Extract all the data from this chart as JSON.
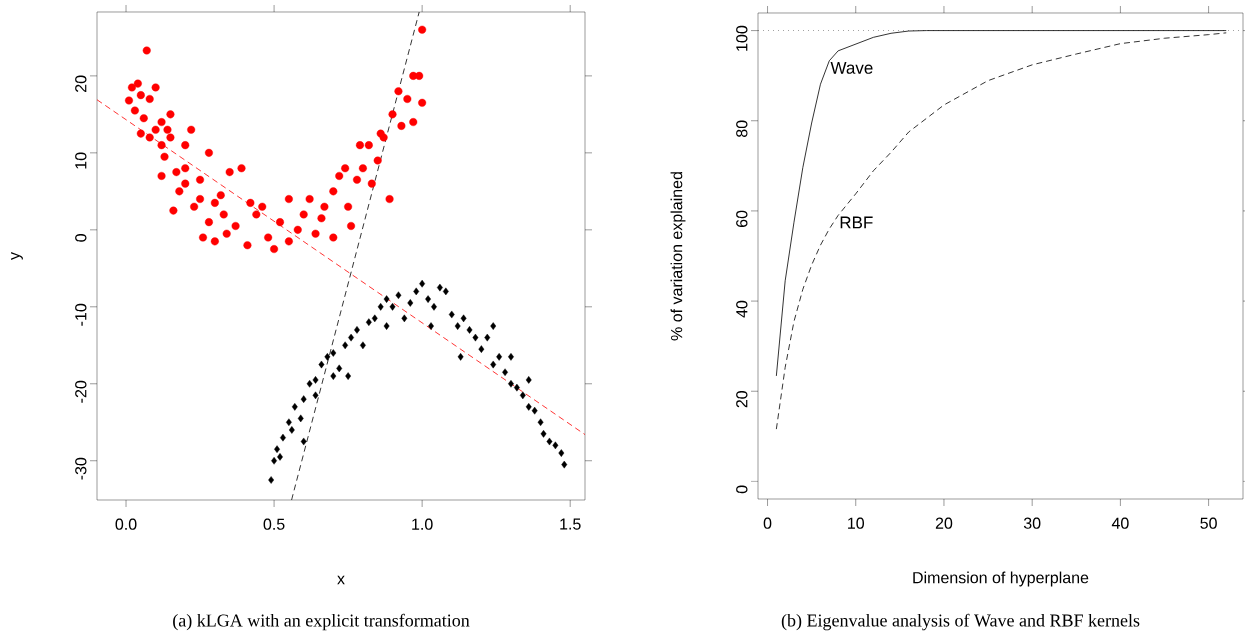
{
  "chart_data": [
    {
      "type": "scatter",
      "xlabel": "x",
      "ylabel": "y",
      "xlim": [
        -0.098,
        1.55
      ],
      "ylim": [
        -35.1,
        28.3
      ],
      "xticks": [
        {
          "value": 0,
          "label": "0.0"
        },
        0.5,
        {
          "value": 1,
          "label": "1.0"
        },
        1.5
      ],
      "yticks": [
        -30,
        -20,
        -10,
        0,
        10,
        20
      ],
      "series": [
        {
          "color": "#ff0000",
          "marker": "circle",
          "x": [
            0.07,
            0.02,
            0.04,
            0.01,
            0.05,
            0.08,
            0.1,
            0.03,
            0.06,
            0.1,
            0.12,
            0.15,
            0.14,
            0.08,
            0.12,
            0.15,
            0.13,
            0.2,
            0.17,
            0.12,
            0.2,
            0.25,
            0.28,
            0.22,
            0.18,
            0.23,
            0.16,
            0.25,
            0.3,
            0.32,
            0.28,
            0.33,
            0.35,
            0.39,
            0.26,
            0.3,
            0.34,
            0.37,
            0.41,
            0.44,
            0.46,
            0.48,
            0.5,
            0.52,
            0.55,
            0.58,
            0.6,
            0.62,
            0.64,
            0.66,
            0.7,
            0.72,
            0.75,
            0.78,
            0.8,
            0.83,
            0.85,
            0.87,
            0.82,
            0.9,
            0.92,
            0.95,
            0.97,
            0.99,
            1.0,
            1.0,
            0.93,
            0.89,
            0.76,
            0.7,
            0.55,
            0.67,
            0.42,
            0.2,
            0.05,
            0.97,
            0.86,
            0.79,
            0.74
          ],
          "values": [
            23.3,
            18.5,
            19,
            16.8,
            17.5,
            17,
            18.5,
            15.5,
            14.5,
            13,
            14,
            15,
            13,
            12,
            11,
            12,
            9.5,
            8,
            7.5,
            7,
            6,
            6.5,
            10,
            13,
            5,
            3,
            2.5,
            4,
            3.5,
            4.5,
            1,
            2,
            7.5,
            8,
            -1,
            -1.5,
            -0.5,
            0.5,
            -2,
            2,
            3,
            -1,
            -2.5,
            1,
            -1.5,
            0,
            2,
            4,
            -0.5,
            1.5,
            5,
            7,
            3,
            6.5,
            8,
            6,
            9,
            12,
            11,
            15,
            18,
            17,
            20,
            20,
            26,
            16.5,
            13.5,
            4,
            0.5,
            -1,
            4,
            3,
            3.5,
            11,
            12.5,
            14,
            12.5,
            11,
            8
          ]
        },
        {
          "color": "#000000",
          "marker": "diamond",
          "x": [
            0.49,
            0.5,
            0.51,
            0.53,
            0.52,
            0.55,
            0.57,
            0.56,
            0.6,
            0.59,
            0.62,
            0.64,
            0.66,
            0.68,
            0.7,
            0.7,
            0.72,
            0.74,
            0.76,
            0.78,
            0.75,
            0.8,
            0.82,
            0.84,
            0.86,
            0.88,
            0.9,
            0.92,
            0.94,
            0.96,
            0.98,
            1.0,
            1.02,
            1.04,
            1.06,
            1.08,
            1.1,
            1.12,
            1.14,
            1.16,
            1.18,
            1.2,
            1.22,
            1.24,
            1.26,
            1.28,
            1.3,
            1.32,
            1.34,
            1.36,
            1.38,
            1.4,
            1.41,
            1.43,
            1.45,
            1.47,
            1.48,
            1.36,
            1.3,
            1.13,
            0.6,
            1.03,
            1.24,
            0.88,
            0.64
          ],
          "values": [
            -32.5,
            -30,
            -28.5,
            -27,
            -29.5,
            -25,
            -23,
            -26,
            -22,
            -24.5,
            -20,
            -19.5,
            -17.5,
            -16.5,
            -16,
            -19,
            -18,
            -15,
            -14,
            -13,
            -19,
            -15,
            -12,
            -11.5,
            -10,
            -9,
            -10,
            -8.5,
            -11.5,
            -9.5,
            -8,
            -7,
            -9,
            -10,
            -7.5,
            -8,
            -11,
            -12.5,
            -11.5,
            -13,
            -14,
            -15.5,
            -14,
            -17.5,
            -16.5,
            -18.5,
            -20,
            -20.5,
            -21.5,
            -23,
            -23.5,
            -25,
            -26.5,
            -27.5,
            -28,
            -29,
            -30.5,
            -19.5,
            -16.5,
            -16.5,
            -27.5,
            -12.5,
            -12.5,
            -12.5,
            -21.5
          ]
        },
        {
          "type": "line",
          "color": "#ff0000",
          "line_style": "dashed",
          "x": [
            -0.098,
            1.55
          ],
          "values": [
            16.9,
            -26.6
          ]
        },
        {
          "type": "line",
          "color": "#000000",
          "line_style": "dashed",
          "x": [
            0.559,
            0.99
          ],
          "values": [
            -35.1,
            28.3
          ]
        }
      ],
      "annotations": [
        "(a) kLGA with an explicit transformation"
      ]
    },
    {
      "type": "line",
      "xlabel": "Dimension of hyperplane",
      "ylabel": "% of variation explained",
      "xlim": [
        -1.08,
        53.9
      ],
      "ylim": [
        -3.9,
        103.9
      ],
      "xticks": [
        0,
        10,
        20,
        30,
        40,
        50
      ],
      "yticks": [
        0,
        20,
        40,
        60,
        80,
        100
      ],
      "ref_lines": [
        {
          "axis": "y",
          "value": 100,
          "line_style": "dotted"
        }
      ],
      "series": [
        {
          "name": "Wave",
          "color": "#000000",
          "line_style": "solid",
          "x": [
            1,
            2,
            3,
            4,
            5,
            6,
            7,
            8,
            10,
            12,
            14,
            16,
            18,
            52
          ],
          "values": [
            23.4,
            44.5,
            57.5,
            69.6,
            79.5,
            88.1,
            93.3,
            95.5,
            97,
            98.5,
            99.4,
            99.9,
            100,
            100
          ]
        },
        {
          "name": "RBF",
          "color": "#000000",
          "line_style": "dashed",
          "x": [
            1,
            2,
            3,
            4,
            5,
            6,
            7,
            8,
            10,
            12,
            14,
            16,
            20,
            25,
            30,
            35,
            40,
            45,
            50,
            52
          ],
          "values": [
            11.6,
            25.3,
            35.5,
            42.6,
            48,
            52.4,
            56,
            59,
            63.8,
            68.9,
            73,
            77.5,
            83.5,
            88.9,
            92.4,
            94.8,
            97.1,
            98.3,
            99.1,
            99.5
          ]
        }
      ],
      "annotations": [
        "(b) Eigenvalue analysis of Wave and RBF kernels"
      ]
    }
  ]
}
